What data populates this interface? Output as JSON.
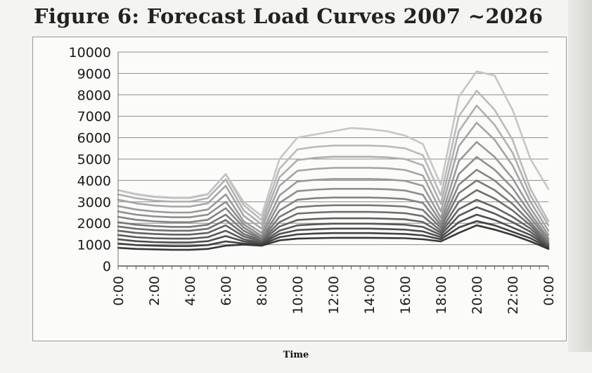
{
  "chart_data": {
    "type": "line",
    "title": "Figure 6: Forecast Load Curves 2007 ~2026",
    "xlabel": "Time",
    "ylabel": "",
    "ylim": [
      0,
      10000
    ],
    "yticks": [
      0,
      1000,
      2000,
      3000,
      4000,
      5000,
      6000,
      7000,
      8000,
      9000,
      10000
    ],
    "xlim": [
      0,
      24
    ],
    "xticks": [
      "0:00",
      "2:00",
      "4:00",
      "6:00",
      "8:00",
      "10:00",
      "12:00",
      "14:00",
      "16:00",
      "18:00",
      "20:00",
      "22:00",
      "0:00"
    ],
    "grid": true,
    "legend": "none",
    "x": [
      0,
      1,
      2,
      3,
      4,
      5,
      6,
      7,
      8,
      9,
      10,
      11,
      12,
      13,
      14,
      15,
      16,
      17,
      18,
      19,
      20,
      21,
      22,
      23,
      24
    ],
    "series": [
      {
        "values": [
          850,
          800,
          780,
          760,
          760,
          800,
          950,
          1000,
          950,
          1200,
          1280,
          1300,
          1320,
          1320,
          1320,
          1310,
          1300,
          1250,
          1150,
          1550,
          1900,
          1700,
          1450,
          1150,
          800
        ]
      },
      {
        "values": [
          1050,
          980,
          950,
          930,
          930,
          980,
          1150,
          1050,
          1000,
          1350,
          1480,
          1520,
          1540,
          1540,
          1540,
          1520,
          1500,
          1430,
          1250,
          1800,
          2100,
          1900,
          1600,
          1300,
          850
        ]
      },
      {
        "values": [
          1250,
          1160,
          1120,
          1100,
          1100,
          1160,
          1400,
          1150,
          1050,
          1500,
          1680,
          1720,
          1750,
          1750,
          1750,
          1730,
          1700,
          1620,
          1350,
          2050,
          2400,
          2150,
          1800,
          1450,
          900
        ]
      },
      {
        "values": [
          1450,
          1350,
          1300,
          1280,
          1280,
          1350,
          1650,
          1250,
          1100,
          1650,
          1900,
          1950,
          1980,
          1980,
          1980,
          1960,
          1930,
          1830,
          1450,
          2350,
          2750,
          2450,
          2050,
          1600,
          950
        ]
      },
      {
        "values": [
          1650,
          1550,
          1500,
          1470,
          1470,
          1550,
          1900,
          1380,
          1150,
          1850,
          2150,
          2200,
          2230,
          2230,
          2230,
          2210,
          2180,
          2060,
          1550,
          2650,
          3100,
          2750,
          2300,
          1750,
          1000
        ]
      },
      {
        "values": [
          1850,
          1740,
          1680,
          1650,
          1650,
          1740,
          2150,
          1500,
          1200,
          2050,
          2450,
          2500,
          2530,
          2530,
          2530,
          2510,
          2470,
          2330,
          1650,
          3000,
          3550,
          3150,
          2600,
          1900,
          1050
        ]
      },
      {
        "values": [
          2050,
          1930,
          1870,
          1830,
          1830,
          1930,
          2400,
          1650,
          1250,
          2300,
          2750,
          2810,
          2840,
          2840,
          2840,
          2820,
          2780,
          2620,
          1780,
          3400,
          4000,
          3550,
          2900,
          2050,
          1100
        ]
      },
      {
        "values": [
          2300,
          2160,
          2090,
          2050,
          2050,
          2160,
          2700,
          1800,
          1300,
          2600,
          3100,
          3170,
          3200,
          3200,
          3200,
          3180,
          3130,
          2950,
          1900,
          3800,
          4500,
          4000,
          3250,
          2250,
          1200
        ]
      },
      {
        "values": [
          2550,
          2400,
          2320,
          2280,
          2280,
          2400,
          3000,
          1950,
          1400,
          2950,
          3500,
          3570,
          3610,
          3610,
          3610,
          3590,
          3530,
          3330,
          2050,
          4300,
          5100,
          4500,
          3650,
          2450,
          1300
        ]
      },
      {
        "values": [
          2800,
          2640,
          2550,
          2500,
          2500,
          2640,
          3350,
          2100,
          1550,
          3300,
          3950,
          4030,
          4070,
          4070,
          4070,
          4050,
          3980,
          3750,
          2250,
          4900,
          5800,
          5100,
          4100,
          2700,
          1450
        ]
      },
      {
        "values": [
          3100,
          2930,
          2830,
          2780,
          2780,
          2930,
          3750,
          2350,
          1750,
          3750,
          4450,
          4540,
          4590,
          4590,
          4590,
          4570,
          4490,
          4230,
          2550,
          5600,
          6700,
          5900,
          4700,
          3000,
          1650
        ]
      },
      {
        "values": [
          3350,
          3170,
          3060,
          3010,
          3010,
          3170,
          4050,
          2600,
          1950,
          4150,
          4950,
          5060,
          5110,
          5110,
          5110,
          5080,
          5000,
          4710,
          2900,
          6300,
          7500,
          6600,
          5300,
          3300,
          1900
        ]
      },
      {
        "values": [
          3550,
          3350,
          3230,
          3180,
          3180,
          3350,
          4300,
          2850,
          2150,
          4550,
          5450,
          5570,
          5630,
          5630,
          5630,
          5600,
          5500,
          5180,
          3300,
          7000,
          8200,
          7300,
          5900,
          3600,
          2100
        ]
      },
      {
        "values": [
          3550,
          3370,
          3250,
          3200,
          3200,
          3370,
          4300,
          3000,
          2350,
          5000,
          6000,
          6150,
          6300,
          6450,
          6400,
          6300,
          6100,
          5700,
          3800,
          7900,
          9100,
          8900,
          7300,
          5000,
          3600
        ]
      }
    ]
  }
}
